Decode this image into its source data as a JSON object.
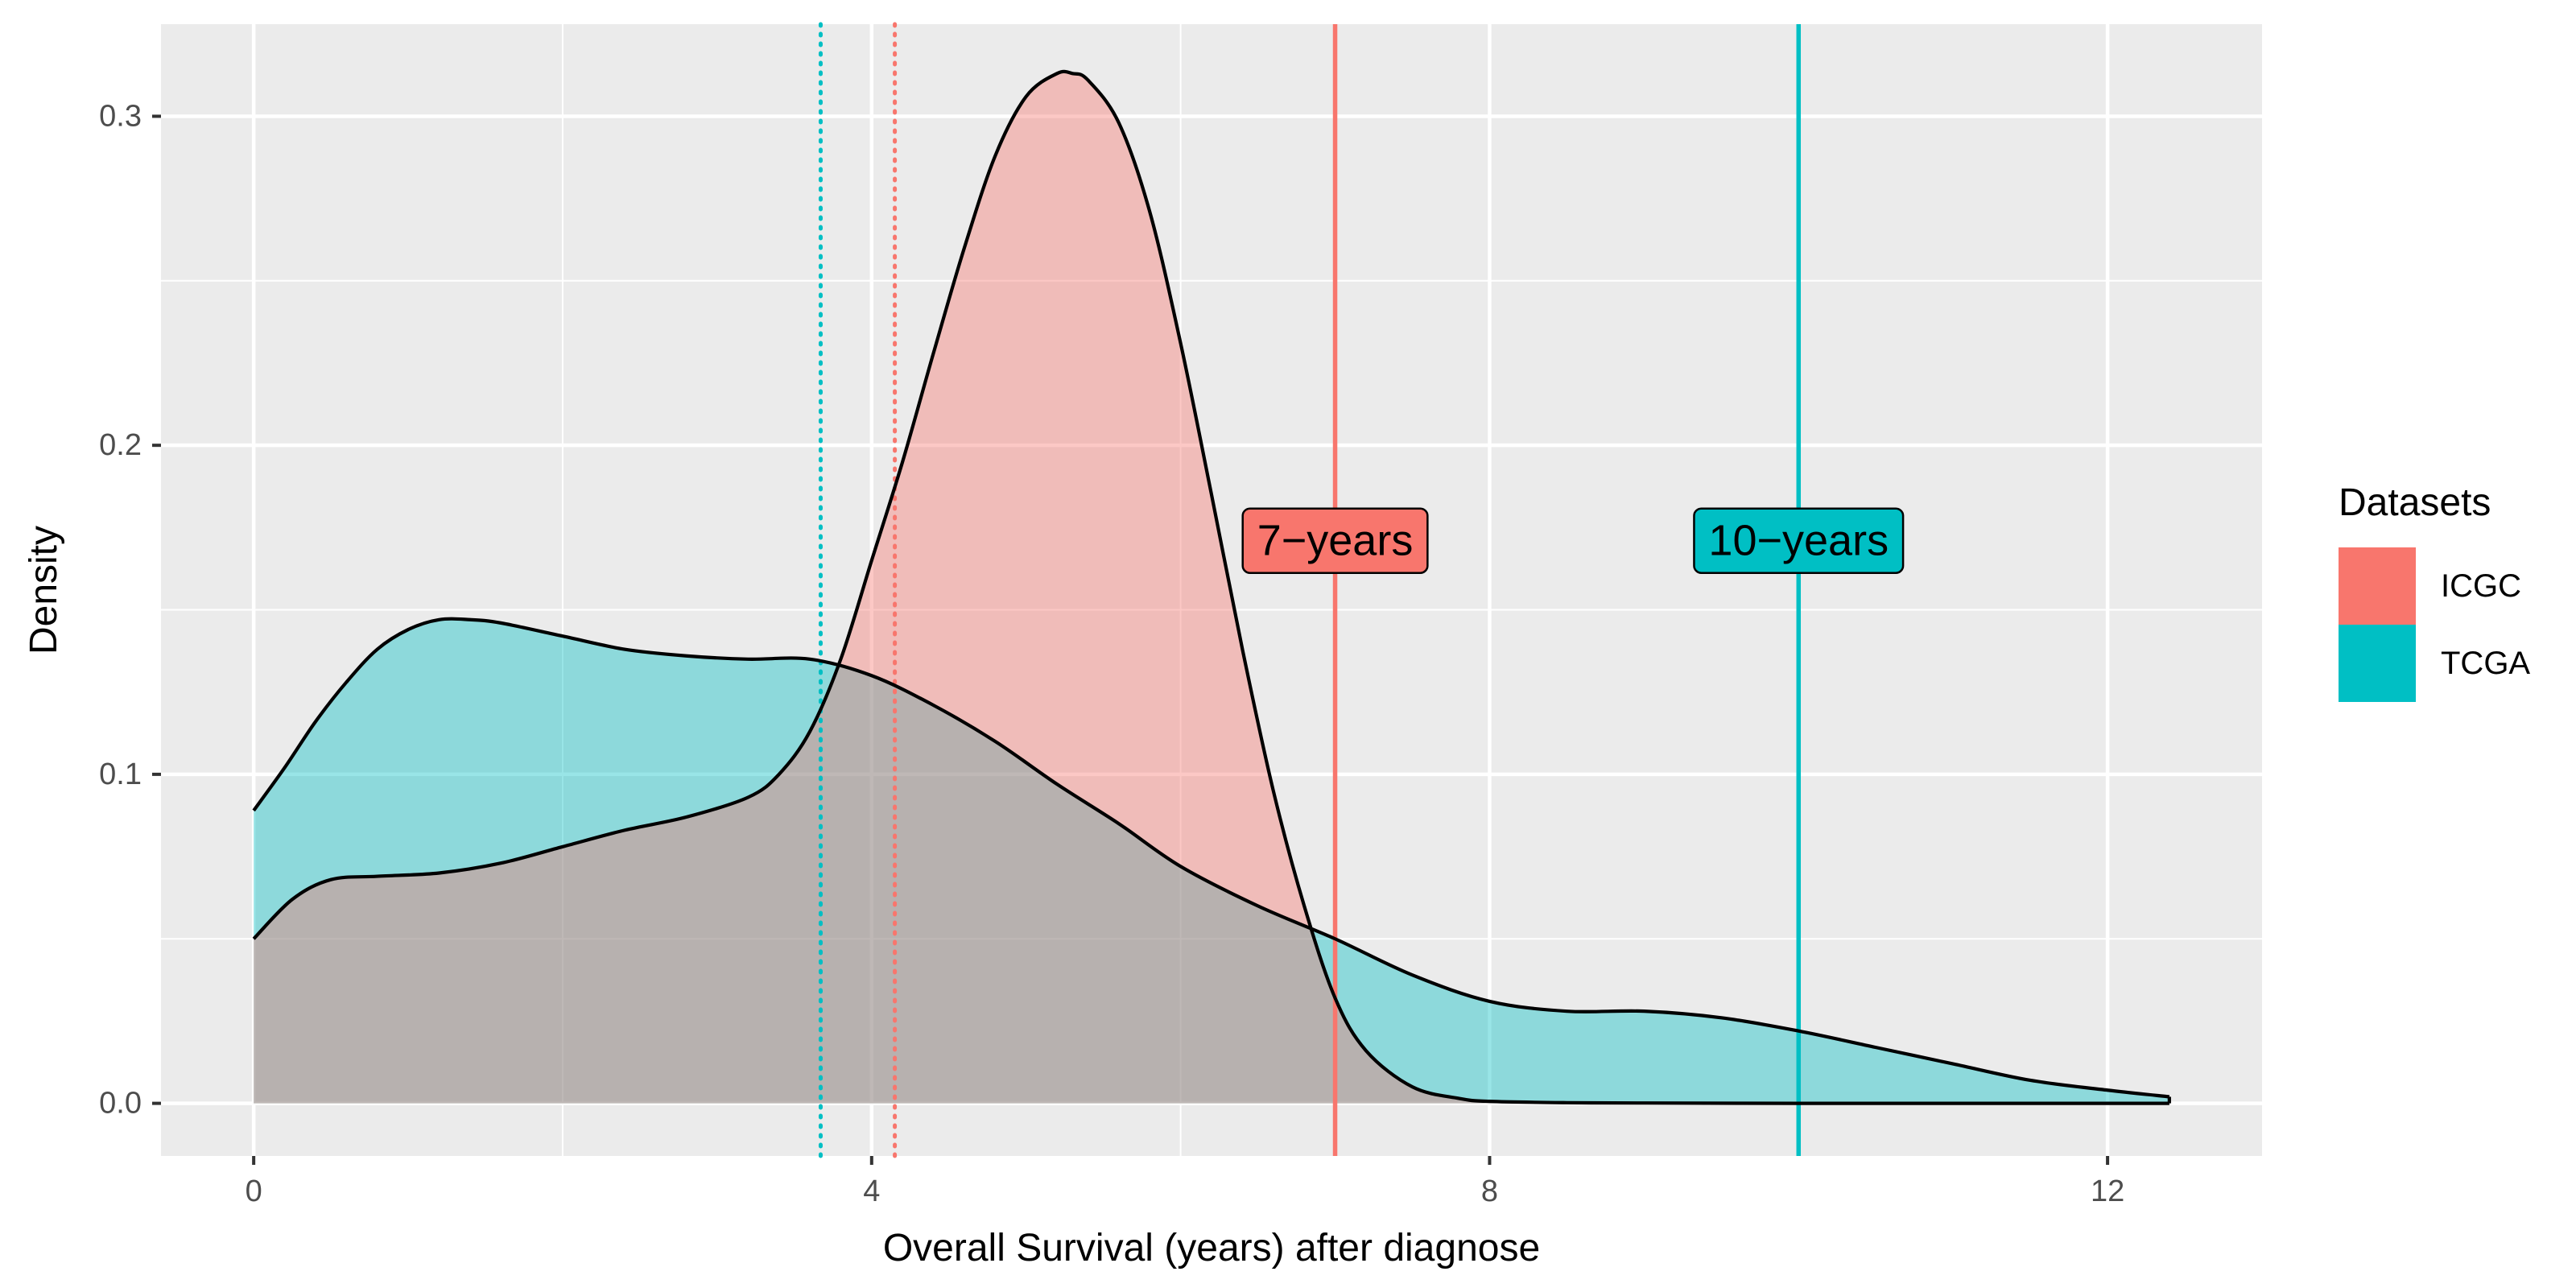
{
  "chart_data": {
    "type": "area",
    "subtype": "density",
    "title": "",
    "xlabel": "Overall Survival (years) after diagnose",
    "ylabel": "Density",
    "xlim": [
      -0.6,
      13.0
    ],
    "ylim": [
      -0.016,
      0.328
    ],
    "x_ticks": [
      0,
      4,
      8,
      12
    ],
    "x_tick_labels": [
      "0",
      "4",
      "8",
      "12"
    ],
    "y_ticks": [
      0.0,
      0.1,
      0.2,
      0.3
    ],
    "y_tick_labels": [
      "0.0",
      "0.1",
      "0.2",
      "0.3"
    ],
    "grid": true,
    "legend": {
      "title": "Datasets",
      "position": "right",
      "entries": [
        {
          "name": "ICGC",
          "color": "#F8766D"
        },
        {
          "name": "TCGA",
          "color": "#00BFC4"
        }
      ]
    },
    "series": [
      {
        "name": "ICGC",
        "color": "#F8766D",
        "fill_alpha": 0.4,
        "x": [
          0,
          0.25,
          0.5,
          0.8,
          1.2,
          1.6,
          2.0,
          2.4,
          2.8,
          3.2,
          3.4,
          3.6,
          3.8,
          4.0,
          4.2,
          4.4,
          4.6,
          4.8,
          5.0,
          5.2,
          5.3,
          5.4,
          5.6,
          5.8,
          6.0,
          6.2,
          6.4,
          6.6,
          6.8,
          7.0,
          7.2,
          7.5,
          7.8,
          8.0,
          8.5,
          9.0,
          10.0,
          11.0,
          12.4
        ],
        "values": [
          0.05,
          0.062,
          0.068,
          0.069,
          0.07,
          0.073,
          0.078,
          0.083,
          0.087,
          0.093,
          0.1,
          0.113,
          0.135,
          0.165,
          0.195,
          0.228,
          0.26,
          0.288,
          0.306,
          0.313,
          0.313,
          0.311,
          0.298,
          0.271,
          0.231,
          0.185,
          0.138,
          0.095,
          0.06,
          0.032,
          0.016,
          0.005,
          0.0015,
          0.0006,
          0.0002,
          0.0001,
          0.0,
          0.0,
          0.0
        ]
      },
      {
        "name": "TCGA",
        "color": "#00BFC4",
        "fill_alpha": 0.4,
        "x": [
          0,
          0.2,
          0.4,
          0.6,
          0.8,
          1.0,
          1.2,
          1.4,
          1.6,
          2.0,
          2.4,
          2.8,
          3.2,
          3.6,
          4.0,
          4.4,
          4.8,
          5.2,
          5.6,
          6.0,
          6.5,
          7.0,
          7.5,
          8.0,
          8.5,
          9.0,
          9.5,
          10.0,
          10.5,
          11.0,
          11.5,
          12.0,
          12.4
        ],
        "values": [
          0.089,
          0.102,
          0.116,
          0.128,
          0.138,
          0.144,
          0.147,
          0.147,
          0.146,
          0.142,
          0.138,
          0.136,
          0.135,
          0.135,
          0.13,
          0.121,
          0.11,
          0.097,
          0.085,
          0.072,
          0.06,
          0.05,
          0.039,
          0.031,
          0.028,
          0.028,
          0.026,
          0.022,
          0.017,
          0.012,
          0.007,
          0.004,
          0.002
        ]
      }
    ],
    "reference_lines": [
      {
        "name": "ICGC-mean",
        "x": 4.15,
        "style": "dotted",
        "color": "#F8766D"
      },
      {
        "name": "TCGA-mean",
        "x": 3.67,
        "style": "dotted",
        "color": "#00BFC4"
      },
      {
        "name": "7-years",
        "x": 7.0,
        "style": "solid",
        "color": "#F8766D"
      },
      {
        "name": "10-years",
        "x": 10.0,
        "style": "solid",
        "color": "#00BFC4"
      }
    ],
    "annotations": [
      {
        "text": "7−years",
        "x": 7.0,
        "y": 0.171,
        "fill": "#F8766D"
      },
      {
        "text": "10−years",
        "x": 10.0,
        "y": 0.171,
        "fill": "#00BFC4"
      }
    ]
  }
}
